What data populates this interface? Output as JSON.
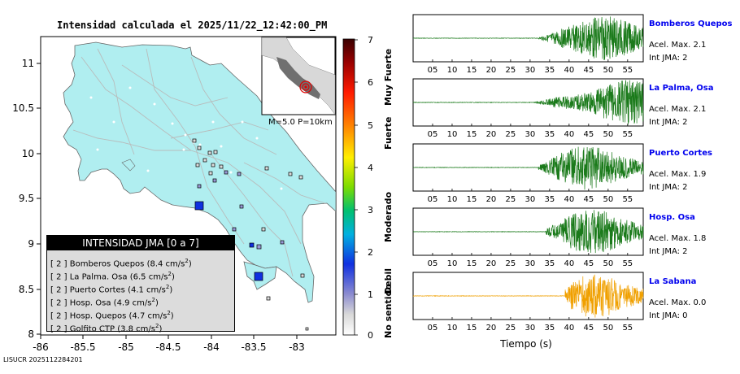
{
  "map": {
    "title": "Intensidad calculada el 2025/11/22_12:42:00_PM",
    "footer_id": "LISUCR 2025112284201",
    "x_ticks": [
      "-86",
      "-85.5",
      "-85",
      "-84.5",
      "-84",
      "-83.5",
      "-83"
    ],
    "y_ticks": [
      "11",
      "10.5",
      "10",
      "9.5",
      "9",
      "8.5",
      "8"
    ],
    "inset_label": "M=5.0 P=10km",
    "colors": {
      "land": "#b0eef0",
      "sea": "#ffffff",
      "roads": "#b8bcbc",
      "station_large": "#1030e0",
      "station_small": "#9a9ad8"
    }
  },
  "legend": {
    "title": "INTENSIDAD JMA [0 a 7]",
    "rows": [
      {
        "level": "[ 2 ]",
        "name": "Bomberos Quepos",
        "value": "(8.4 cm/s",
        "unit_sup": "2",
        "close": ")"
      },
      {
        "level": "[ 2 ]",
        "name": "La Palma. Osa",
        "value": "(6.5 cm/s",
        "unit_sup": "2",
        "close": ")"
      },
      {
        "level": "[ 2 ]",
        "name": "Puerto Cortes",
        "value": "(4.1 cm/s",
        "unit_sup": "2",
        "close": ")"
      },
      {
        "level": "[ 2 ]",
        "name": "Hosp. Osa",
        "value": "(4.9 cm/s",
        "unit_sup": "2",
        "close": ")"
      },
      {
        "level": "[ 2 ]",
        "name": "Hosp. Quepos",
        "value": "(4.7 cm/s",
        "unit_sup": "2",
        "close": ")"
      },
      {
        "level": "[ 2 ]",
        "name": "Golfito CTP",
        "value": "(3.8 cm/s",
        "unit_sup": "2",
        "close": ")"
      }
    ]
  },
  "scale": {
    "ticks": [
      "7",
      "6",
      "5",
      "4",
      "3",
      "2",
      "1",
      "0"
    ],
    "labels": [
      "Muy Fuerte",
      "Fuerte",
      "Moderado",
      "Debil",
      "No sentido"
    ]
  },
  "waveforms": {
    "time_ticks": [
      "05",
      "10",
      "15",
      "20",
      "25",
      "30",
      "35",
      "40",
      "45",
      "50",
      "55"
    ],
    "xlabel": "Tiempo (s)",
    "stations": [
      {
        "name": "Bomberos Quepos",
        "accel": "Acel. Max. 2.1",
        "int": "Int JMA: 2",
        "color": "#1a7a1a",
        "onset": 32,
        "peak": 49
      },
      {
        "name": "La Palma, Osa",
        "accel": "Acel. Max. 2.1",
        "int": "Int JMA: 2",
        "color": "#1a7a1a",
        "onset": 31,
        "peak": 55
      },
      {
        "name": "Puerto Cortes",
        "accel": "Acel. Max. 1.9",
        "int": "Int JMA: 2",
        "color": "#1a7a1a",
        "onset": 32,
        "peak": 45
      },
      {
        "name": "Hosp. Osa",
        "accel": "Acel. Max. 1.8",
        "int": "Int JMA: 2",
        "color": "#1a7a1a",
        "onset": 34,
        "peak": 46
      },
      {
        "name": "La Sabana",
        "accel": "Acel. Max. 0.0",
        "int": "Int JMA: 0",
        "color": "#f0a000",
        "onset": 39,
        "peak": 46
      }
    ]
  }
}
